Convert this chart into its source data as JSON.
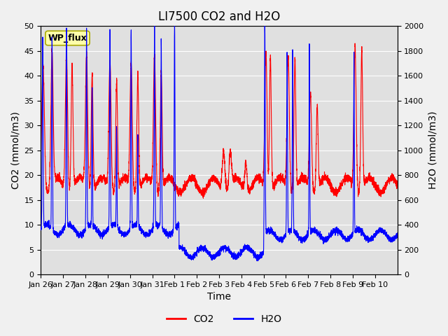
{
  "title": "LI7500 CO2 and H2O",
  "xlabel": "Time",
  "ylabel_left": "CO2 (mmol/m3)",
  "ylabel_right": "H2O (mmol/m3)",
  "ylim_left": [
    0,
    50
  ],
  "ylim_right": [
    0,
    2000
  ],
  "yticks_left": [
    0,
    5,
    10,
    15,
    20,
    25,
    30,
    35,
    40,
    45,
    50
  ],
  "yticks_right": [
    0,
    200,
    400,
    600,
    800,
    1000,
    1200,
    1400,
    1600,
    1800,
    2000
  ],
  "xtick_labels": [
    "Jan 26",
    "Jan 27",
    "Jan 28",
    "Jan 29",
    "Jan 30",
    "Jan 31",
    "Feb 1",
    "Feb 2",
    "Feb 3",
    "Feb 4",
    "Feb 5",
    "Feb 6",
    "Feb 7",
    "Feb 8",
    "Feb 9",
    "Feb 10"
  ],
  "co2_color": "#FF0000",
  "h2o_color": "#0000FF",
  "bg_color": "#E0E0E0",
  "legend_label_co2": "CO2",
  "legend_label_h2o": "H2O",
  "annotation_text": "WP_flux",
  "grid_color": "#FFFFFF",
  "linewidth": 0.8,
  "title_fontsize": 12,
  "axis_fontsize": 10,
  "tick_fontsize": 8
}
